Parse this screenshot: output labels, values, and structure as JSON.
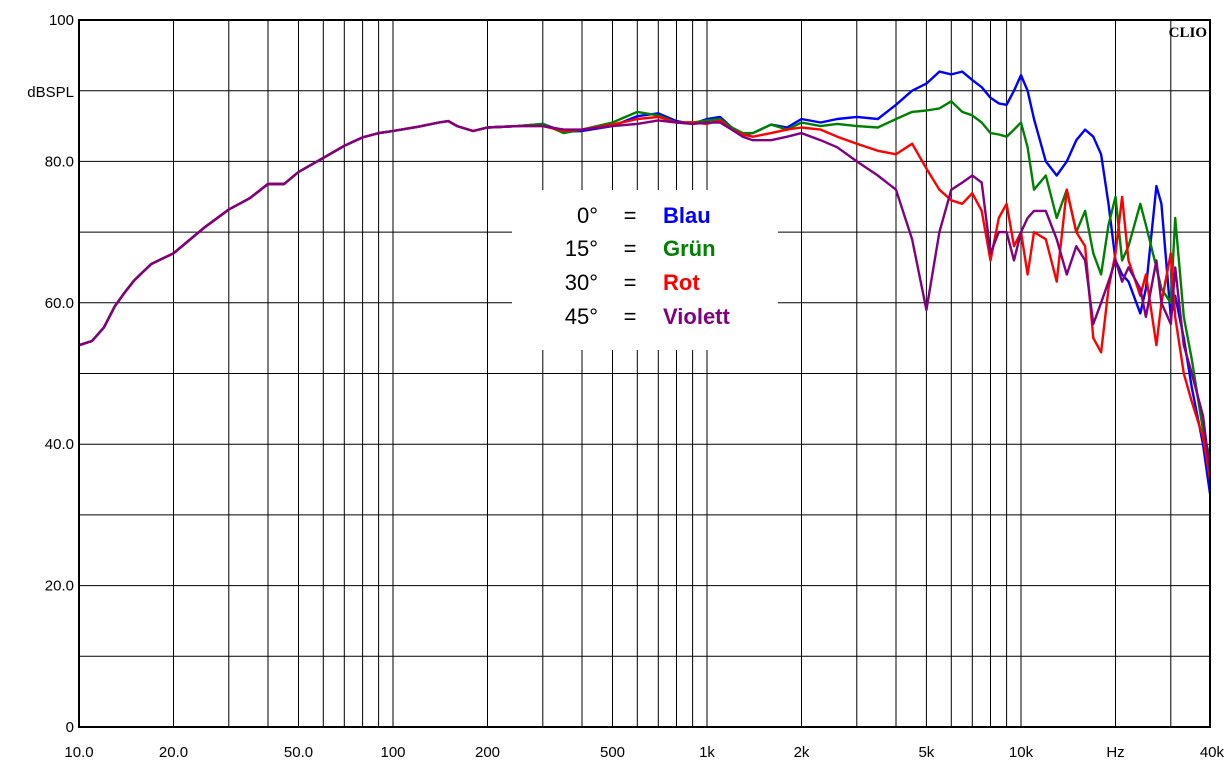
{
  "chart_data": {
    "type": "line",
    "title": "",
    "brand": "CLIO",
    "xlabel": "",
    "ylabel": "dBSPL",
    "x_scale": "log",
    "xlim": [
      10,
      40000
    ],
    "ylim": [
      0,
      100
    ],
    "grid": true,
    "legend_position": "center",
    "x_ticks": [
      {
        "value": 10,
        "label": "10.0"
      },
      {
        "value": 20,
        "label": "20.0"
      },
      {
        "value": 50,
        "label": "50.0"
      },
      {
        "value": 100,
        "label": "100"
      },
      {
        "value": 200,
        "label": "200"
      },
      {
        "value": 500,
        "label": "500"
      },
      {
        "value": 1000,
        "label": "1k"
      },
      {
        "value": 2000,
        "label": "2k"
      },
      {
        "value": 5000,
        "label": "5k"
      },
      {
        "value": 10000,
        "label": "10k"
      },
      {
        "value": 20000,
        "label": "Hz"
      },
      {
        "value": 40000,
        "label": "40k"
      }
    ],
    "y_ticks": [
      {
        "value": 0,
        "label": "0"
      },
      {
        "value": 20,
        "label": "20.0"
      },
      {
        "value": 40,
        "label": "40.0"
      },
      {
        "value": 60,
        "label": "60.0"
      },
      {
        "value": 80,
        "label": "80.0"
      },
      {
        "value": 100,
        "label": "100"
      }
    ],
    "x": [
      10,
      11,
      12,
      13,
      14,
      15,
      17,
      20,
      25,
      30,
      35,
      40,
      45,
      50,
      60,
      70,
      80,
      90,
      100,
      120,
      140,
      150,
      160,
      180,
      200,
      250,
      300,
      350,
      400,
      500,
      600,
      700,
      800,
      900,
      1000,
      1100,
      1200,
      1300,
      1400,
      1600,
      1800,
      2000,
      2300,
      2600,
      3000,
      3500,
      4000,
      4500,
      5000,
      5500,
      6000,
      6500,
      7000,
      7500,
      8000,
      8500,
      9000,
      9500,
      10000,
      10500,
      11000,
      12000,
      13000,
      14000,
      15000,
      16000,
      17000,
      18000,
      19000,
      20000,
      21000,
      22000,
      24000,
      25000,
      27000,
      28000,
      30000,
      31000,
      33000,
      35000,
      38000,
      40000
    ],
    "series": [
      {
        "name": "Blau",
        "color": "#0000ff",
        "values": [
          54.0,
          54.6,
          56.5,
          59.5,
          61.5,
          63.2,
          65.5,
          67.0,
          70.6,
          73.2,
          74.8,
          76.8,
          76.8,
          78.5,
          80.5,
          82.2,
          83.4,
          84.0,
          84.3,
          84.9,
          85.5,
          85.7,
          85.0,
          84.3,
          84.8,
          85.0,
          85.3,
          84.2,
          84.3,
          85.0,
          86.4,
          86.8,
          85.7,
          85.3,
          86.0,
          86.3,
          84.8,
          83.8,
          84.0,
          85.2,
          84.8,
          86.0,
          85.5,
          86.0,
          86.3,
          86.0,
          88.0,
          90.0,
          91.0,
          92.7,
          92.3,
          92.7,
          91.5,
          90.5,
          89.0,
          88.2,
          88.0,
          90.0,
          92.2,
          90.0,
          86.0,
          80.0,
          78.0,
          80.0,
          83.0,
          84.5,
          83.5,
          81.0,
          74.0,
          66.0,
          64.0,
          63.0,
          58.5,
          62.0,
          76.5,
          74.0,
          58.0,
          61.0,
          55.0,
          48.0,
          40.0,
          33.0
        ]
      },
      {
        "name": "Grün",
        "color": "#008000",
        "values": [
          54.0,
          54.6,
          56.5,
          59.5,
          61.5,
          63.2,
          65.5,
          67.0,
          70.6,
          73.2,
          74.8,
          76.8,
          76.8,
          78.5,
          80.5,
          82.2,
          83.4,
          84.0,
          84.3,
          84.9,
          85.5,
          85.7,
          85.0,
          84.3,
          84.8,
          85.0,
          85.3,
          84.0,
          84.5,
          85.5,
          87.0,
          86.5,
          85.5,
          85.5,
          85.8,
          86.0,
          84.8,
          84.0,
          84.0,
          85.2,
          84.5,
          85.5,
          85.0,
          85.3,
          85.0,
          84.8,
          86.0,
          87.0,
          87.2,
          87.5,
          88.5,
          87.0,
          86.5,
          85.5,
          84.0,
          83.8,
          83.5,
          84.5,
          85.5,
          82.0,
          76.0,
          78.0,
          72.0,
          76.0,
          70.0,
          73.0,
          67.0,
          64.0,
          71.0,
          75.0,
          66.0,
          68.0,
          74.0,
          71.0,
          65.0,
          62.0,
          60.0,
          72.0,
          58.0,
          52.0,
          42.0,
          38.0
        ]
      },
      {
        "name": "Rot",
        "color": "#ff0000",
        "values": [
          54.0,
          54.6,
          56.5,
          59.5,
          61.5,
          63.2,
          65.5,
          67.0,
          70.6,
          73.2,
          74.8,
          76.8,
          76.8,
          78.5,
          80.5,
          82.2,
          83.4,
          84.0,
          84.3,
          84.9,
          85.5,
          85.7,
          85.0,
          84.3,
          84.8,
          85.0,
          85.0,
          84.3,
          84.5,
          85.2,
          86.0,
          86.3,
          85.5,
          85.5,
          85.3,
          85.8,
          84.5,
          83.8,
          83.5,
          84.0,
          84.5,
          84.8,
          84.5,
          83.5,
          82.5,
          81.5,
          81.0,
          82.5,
          79.0,
          76.0,
          74.5,
          74.0,
          75.5,
          73.0,
          66.0,
          72.0,
          74.0,
          68.0,
          70.0,
          64.0,
          70.0,
          69.0,
          63.0,
          76.0,
          70.0,
          68.0,
          55.0,
          53.0,
          62.0,
          67.0,
          75.0,
          66.0,
          61.0,
          64.0,
          54.0,
          60.0,
          67.0,
          58.0,
          50.0,
          46.0,
          41.0,
          35.0
        ]
      },
      {
        "name": "Violett",
        "color": "#800080",
        "values": [
          54.0,
          54.6,
          56.5,
          59.5,
          61.5,
          63.2,
          65.5,
          67.0,
          70.6,
          73.2,
          74.8,
          76.8,
          76.8,
          78.5,
          80.5,
          82.2,
          83.4,
          84.0,
          84.3,
          84.9,
          85.5,
          85.7,
          85.0,
          84.3,
          84.8,
          85.0,
          85.0,
          84.5,
          84.5,
          85.0,
          85.3,
          85.8,
          85.5,
          85.3,
          85.5,
          85.5,
          84.5,
          83.5,
          83.0,
          83.0,
          83.5,
          84.0,
          83.0,
          82.0,
          80.0,
          78.0,
          76.0,
          69.0,
          59.0,
          70.0,
          76.0,
          77.0,
          78.0,
          77.0,
          67.0,
          70.0,
          70.0,
          66.0,
          70.0,
          72.0,
          73.0,
          73.0,
          69.0,
          64.0,
          68.0,
          66.0,
          57.0,
          60.0,
          63.0,
          66.0,
          63.0,
          65.0,
          62.0,
          58.0,
          66.0,
          60.0,
          57.0,
          65.0,
          54.0,
          50.0,
          44.0,
          36.0
        ]
      }
    ]
  },
  "legend": {
    "rows": [
      {
        "angle": "0°",
        "eq": "=",
        "name": "Blau",
        "color": "#0000ff"
      },
      {
        "angle": "15°",
        "eq": "=",
        "name": "Grün",
        "color": "#008000"
      },
      {
        "angle": "30°",
        "eq": "=",
        "name": "Rot",
        "color": "#ff0000"
      },
      {
        "angle": "45°",
        "eq": "=",
        "name": "Violett",
        "color": "#800080"
      }
    ]
  }
}
